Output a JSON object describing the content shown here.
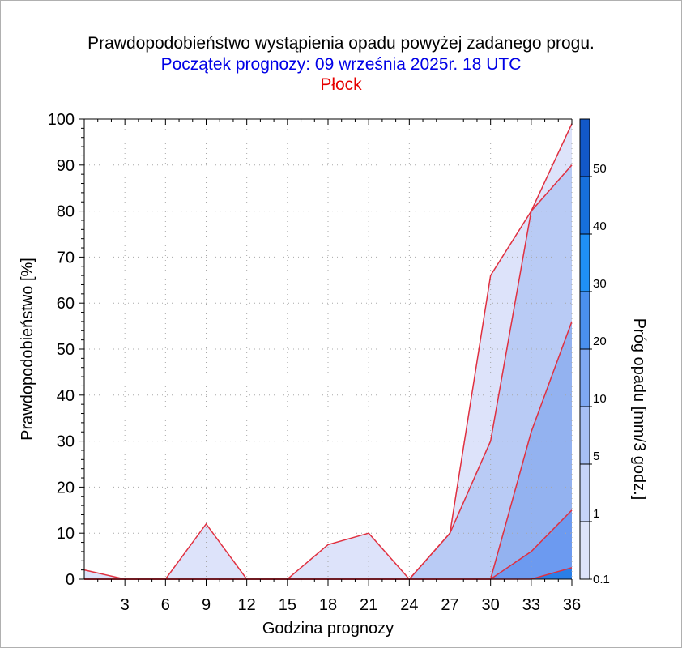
{
  "chart_data": {
    "type": "area",
    "title": "Prawdopodobieństwo wystąpienia opadu powyżej zadanego progu.",
    "subtitle": "Początek prognozy: 09 września 2025r. 18 UTC",
    "location": "Płock",
    "xlabel": "Godzina prognozy",
    "ylabel": "Prawdopodobieństwo [%]",
    "colorbar_label": "Próg opadu [mm/3 godz.]",
    "xlim": [
      0,
      36
    ],
    "ylim": [
      0,
      100
    ],
    "x_ticks": [
      "3",
      "6",
      "9",
      "12",
      "15",
      "18",
      "21",
      "24",
      "27",
      "30",
      "33",
      "36"
    ],
    "y_ticks": [
      "0",
      "10",
      "20",
      "30",
      "40",
      "50",
      "60",
      "70",
      "80",
      "90",
      "100"
    ],
    "grid": true,
    "x": [
      0,
      3,
      6,
      9,
      12,
      15,
      18,
      21,
      24,
      27,
      30,
      33,
      36
    ],
    "series": [
      {
        "name": "0.1",
        "color": "#dde3fa",
        "values": [
          2,
          0,
          0,
          12,
          0,
          0,
          7.5,
          10,
          0,
          10,
          66,
          80,
          99
        ]
      },
      {
        "name": "1",
        "color": "#b9cbf5",
        "values": [
          0,
          0,
          0,
          0,
          0,
          0,
          0,
          0,
          0,
          10,
          30,
          80,
          90
        ]
      },
      {
        "name": "5",
        "color": "#93b2f0",
        "values": [
          0,
          0,
          0,
          0,
          0,
          0,
          0,
          0,
          0,
          0,
          0,
          32,
          56
        ]
      },
      {
        "name": "10",
        "color": "#6c9af0",
        "values": [
          0,
          0,
          0,
          0,
          0,
          0,
          0,
          0,
          0,
          0,
          0,
          6,
          15
        ]
      },
      {
        "name": "20",
        "color": "#2a7fe8",
        "values": [
          0,
          0,
          0,
          0,
          0,
          0,
          0,
          0,
          0,
          0,
          0,
          0,
          2.5
        ]
      }
    ],
    "outline_color": "#e03040",
    "colorbar": {
      "labels": [
        "0.1",
        "1",
        "5",
        "10",
        "20",
        "30",
        "40",
        "50"
      ],
      "colors": [
        "#dde3fa",
        "#c6d3f8",
        "#a6bef4",
        "#7fa8f2",
        "#4a90ee",
        "#1f90f5",
        "#1670dc",
        "#1258c8",
        "#0c3fa6"
      ]
    }
  }
}
